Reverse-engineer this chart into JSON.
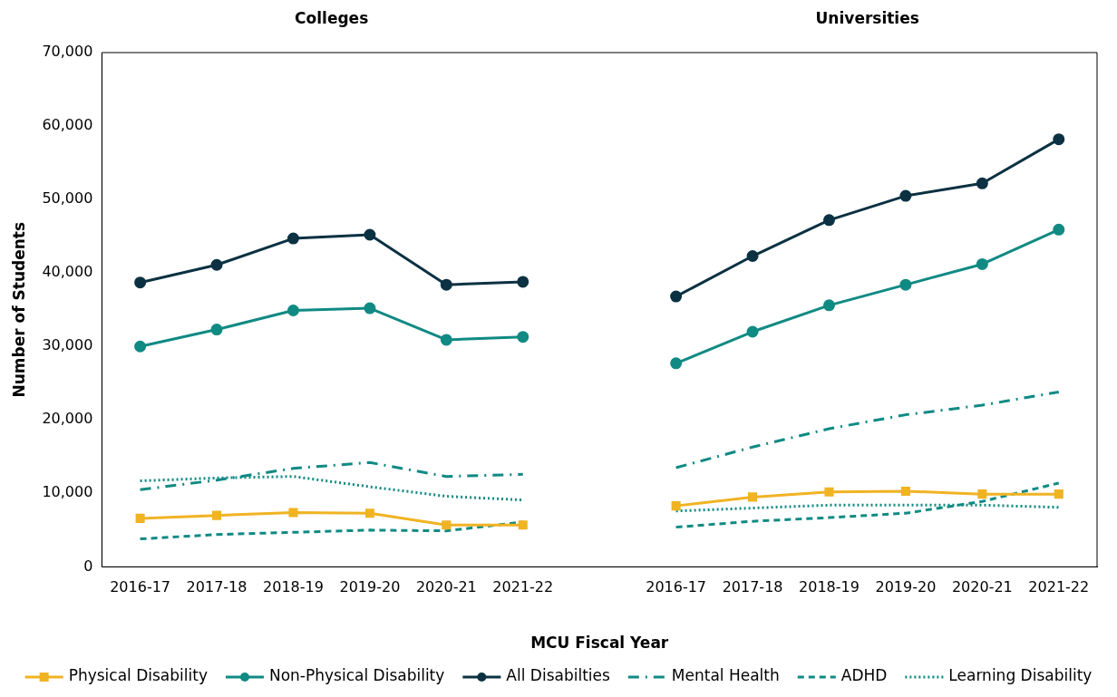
{
  "chart_data": {
    "type": "line",
    "categories": [
      "2016-17",
      "2017-18",
      "2018-19",
      "2019-20",
      "2020-21",
      "2021-22",
      null,
      "2016-17",
      "2017-18",
      "2018-19",
      "2019-20",
      "2020-21",
      "2021-22"
    ],
    "xlabel": "MCU Fiscal Year",
    "ylabel": "Number of Students",
    "annotations": [
      "Colleges",
      "Universities"
    ],
    "ylim": [
      0,
      70000
    ],
    "yticks": [
      0,
      {
        "value": 10000,
        "label": "10,000"
      },
      {
        "value": 20000,
        "label": "20,000"
      },
      {
        "value": 30000,
        "label": "30,000"
      },
      {
        "value": 40000,
        "label": "40,000"
      },
      {
        "value": 50000,
        "label": "50,000"
      },
      {
        "value": 60000,
        "label": "60,000"
      },
      {
        "value": 70000,
        "label": "70,000"
      }
    ],
    "grid": false,
    "legend": "bottom",
    "series": [
      {
        "name": "Physical Disability",
        "color": "#f0b323",
        "marker": "square",
        "line_style": "solid",
        "values": [
          6600,
          7000,
          7400,
          7300,
          5700,
          5700,
          null,
          8300,
          9500,
          10200,
          10300,
          9900,
          9900
        ]
      },
      {
        "name": "Non-Physical Disability",
        "color": "#108a83",
        "marker": "circle",
        "line_style": "solid",
        "values": [
          30000,
          32300,
          34900,
          35200,
          30900,
          31300,
          null,
          27700,
          32000,
          35600,
          38400,
          41200,
          45900
        ]
      },
      {
        "name": "All Disabilties",
        "color": "#0b3142",
        "marker": "circle",
        "line_style": "solid",
        "values": [
          38700,
          41100,
          44700,
          45200,
          38400,
          38800,
          null,
          36800,
          42300,
          47200,
          50500,
          52200,
          58200
        ]
      },
      {
        "name": "Mental Health",
        "color": "#108a83",
        "marker": "none",
        "line_style": "dashdot",
        "values": [
          10500,
          11800,
          13400,
          14200,
          12300,
          12600,
          null,
          13500,
          16300,
          18800,
          20700,
          22000,
          23800
        ]
      },
      {
        "name": "ADHD",
        "color": "#108a83",
        "marker": "none",
        "line_style": "dashed",
        "values": [
          3800,
          4400,
          4700,
          5000,
          4900,
          6100,
          null,
          5400,
          6200,
          6700,
          7300,
          8900,
          11400
        ]
      },
      {
        "name": "Learning Disability",
        "color": "#108a83",
        "marker": "none",
        "line_style": "dotted",
        "values": [
          11700,
          12100,
          12300,
          10900,
          9600,
          9100,
          null,
          7600,
          8000,
          8400,
          8400,
          8400,
          8100
        ]
      }
    ]
  }
}
